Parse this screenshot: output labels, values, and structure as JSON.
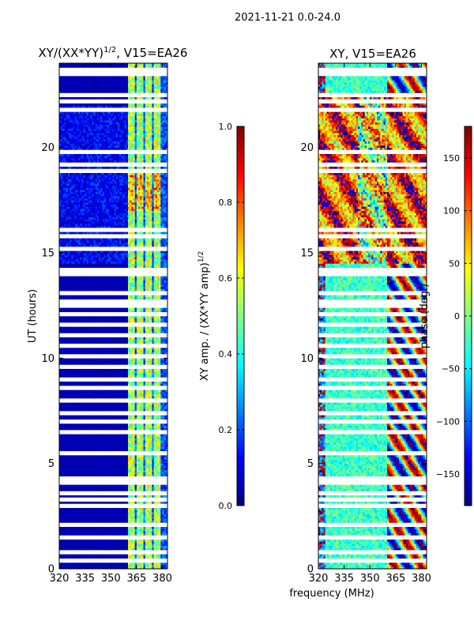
{
  "suptitle": "2021-11-21 0.0-24.0",
  "chart_data": [
    {
      "type": "heatmap",
      "title": "XY/(XX*YY)",
      "title_sup": "1/2",
      "title_suffix": ", V15=EA26",
      "xlabel": "",
      "ylabel": "UT (hours)",
      "xlim": [
        320,
        383
      ],
      "ylim": [
        0,
        24
      ],
      "xticks": [
        320,
        335,
        350,
        365,
        380
      ],
      "yticks": [
        0,
        5,
        10,
        15,
        20
      ],
      "colorbar": {
        "label": "XY amp. / (XX*YY amp)",
        "label_sup": "1/2",
        "range": [
          0.0,
          1.0
        ],
        "ticks": [
          "0.0",
          "0.2",
          "0.4",
          "0.6",
          "0.8",
          "1.0"
        ],
        "tick_values": [
          0.0,
          0.2,
          0.4,
          0.6,
          0.8,
          1.0
        ],
        "colormap": "jet"
      },
      "active_freq_ranges_mhz": [
        [
          360,
          364
        ],
        [
          365,
          369
        ],
        [
          370,
          374
        ],
        [
          375,
          379
        ]
      ],
      "background_level": 0.03,
      "flagged_ut_hours": [
        0.4,
        0.8,
        1.5,
        2.1,
        3.0,
        3.3,
        3.6,
        4.1,
        4.3,
        5.5,
        6.5,
        7.0,
        7.4,
        8.0,
        8.6,
        9.0,
        9.6,
        10.1,
        10.6,
        11.1,
        11.6,
        12.1,
        12.5,
        12.7,
        13.1,
        14.0,
        14.2,
        15.2,
        15.8,
        16.1,
        18.9,
        19.2,
        19.8,
        21.8,
        22.2,
        22.5,
        23.5,
        23.7
      ]
    },
    {
      "type": "heatmap",
      "title": "XY, V15=EA26",
      "xlabel": "frequency (MHz)",
      "ylabel": "",
      "xlim": [
        320,
        383
      ],
      "ylim": [
        0,
        24
      ],
      "xticks": [
        320,
        335,
        350,
        365,
        380
      ],
      "yticks": [
        0,
        5,
        10,
        15,
        20
      ],
      "colorbar": {
        "label": "phase (deg.)",
        "range": [
          -180,
          180
        ],
        "ticks": [
          "−150",
          "−100",
          "−50",
          "0",
          "50",
          "100",
          "150"
        ],
        "tick_values": [
          -150,
          -100,
          -50,
          0,
          50,
          100,
          150
        ],
        "colormap": "jet"
      },
      "flagged_ut_hours": [
        0.4,
        0.8,
        1.5,
        2.1,
        3.0,
        3.3,
        3.6,
        4.1,
        4.3,
        5.5,
        6.5,
        7.0,
        7.4,
        8.0,
        8.6,
        9.0,
        9.6,
        10.1,
        10.6,
        11.1,
        11.6,
        12.1,
        12.5,
        12.7,
        13.1,
        14.0,
        14.2,
        15.2,
        15.8,
        16.1,
        18.9,
        19.2,
        19.8,
        21.8,
        22.2,
        22.5,
        23.5,
        23.7
      ]
    }
  ],
  "colors": {
    "background": "#ffffff",
    "flag": "#ffffff",
    "axis": "#000000"
  }
}
